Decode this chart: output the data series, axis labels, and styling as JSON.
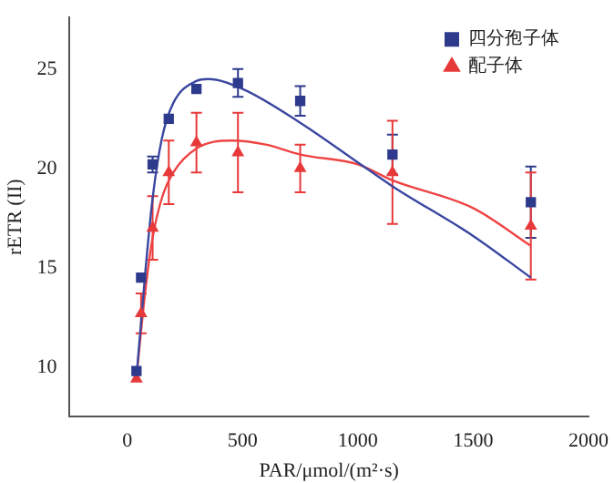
{
  "chart_data": {
    "type": "scatter",
    "xlabel": "PAR/μmol/(m²·s)",
    "ylabel": "rETR (II)",
    "xlim": [
      -250,
      2000
    ],
    "xticks": [
      0,
      500,
      1000,
      1500,
      2000
    ],
    "ylim": [
      7.5,
      27.6
    ],
    "yticks": [
      10,
      15,
      20,
      25
    ],
    "grid": false,
    "legend": "top right",
    "series": [
      {
        "name": "四分孢子体",
        "marker": "square",
        "color": "#2e3a8c",
        "x": [
          40,
          60,
          110,
          180,
          300,
          480,
          750,
          1150,
          1750
        ],
        "values": [
          9.8,
          14.5,
          20.2,
          22.5,
          24.0,
          24.3,
          23.4,
          20.7,
          18.3
        ],
        "errors": [
          null,
          null,
          0.4,
          null,
          null,
          0.7,
          0.75,
          1.0,
          1.8
        ]
      },
      {
        "name": "配子体",
        "marker": "triangle",
        "color": "#e8393a",
        "x": [
          40,
          60,
          110,
          180,
          300,
          480,
          750,
          1150,
          1750
        ],
        "values": [
          9.4,
          12.7,
          17.0,
          19.8,
          21.3,
          20.8,
          20.0,
          19.8,
          17.1
        ],
        "errors": [
          null,
          1.0,
          1.6,
          1.6,
          1.5,
          2.0,
          1.2,
          2.6,
          2.7
        ]
      },
      {
        "type": "line",
        "marker": "none",
        "color": "#3a46a0",
        "x": [
          40,
          80,
          110,
          150,
          200,
          300,
          350,
          500,
          750,
          1000,
          1150,
          1500,
          1750
        ],
        "values": [
          9.5,
          15,
          18.5,
          21.5,
          23.3,
          24.4,
          24.5,
          24,
          22.3,
          20.3,
          19.1,
          16.6,
          14.5
        ]
      },
      {
        "type": "line",
        "marker": "none",
        "color": "#ee4444",
        "x": [
          40,
          80,
          110,
          150,
          200,
          300,
          450,
          600,
          750,
          1000,
          1150,
          1500,
          1750
        ],
        "values": [
          9.5,
          14,
          16.5,
          18.5,
          19.8,
          21,
          21.4,
          21.2,
          20.7,
          20.2,
          19.4,
          18,
          16.1
        ]
      }
    ]
  }
}
